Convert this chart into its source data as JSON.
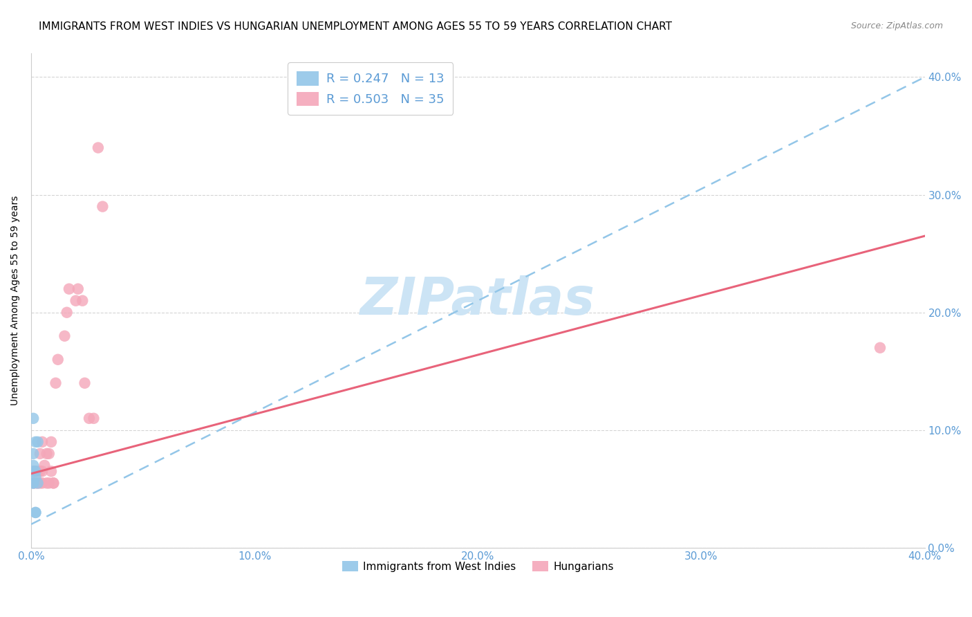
{
  "title": "IMMIGRANTS FROM WEST INDIES VS HUNGARIAN UNEMPLOYMENT AMONG AGES 55 TO 59 YEARS CORRELATION CHART",
  "source": "Source: ZipAtlas.com",
  "ylabel": "Unemployment Among Ages 55 to 59 years",
  "legend_label1": "Immigrants from West Indies",
  "legend_label2": "Hungarians",
  "legend_R1": "R = 0.247",
  "legend_N1": "N = 13",
  "legend_R2": "R = 0.503",
  "legend_N2": "N = 35",
  "watermark": "ZIPatlas",
  "blue_points_x": [
    0.001,
    0.002,
    0.001,
    0.003,
    0.002,
    0.001,
    0.001,
    0.002,
    0.001,
    0.003,
    0.001,
    0.002,
    0.002
  ],
  "blue_points_y": [
    0.11,
    0.09,
    0.08,
    0.09,
    0.065,
    0.07,
    0.065,
    0.06,
    0.055,
    0.055,
    0.055,
    0.03,
    0.03
  ],
  "pink_points_x": [
    0.001,
    0.001,
    0.002,
    0.002,
    0.003,
    0.003,
    0.004,
    0.004,
    0.004,
    0.005,
    0.005,
    0.005,
    0.006,
    0.007,
    0.007,
    0.008,
    0.008,
    0.009,
    0.009,
    0.01,
    0.01,
    0.011,
    0.012,
    0.015,
    0.016,
    0.017,
    0.02,
    0.021,
    0.023,
    0.024,
    0.026,
    0.028,
    0.03,
    0.032,
    0.38
  ],
  "pink_points_y": [
    0.065,
    0.055,
    0.065,
    0.055,
    0.065,
    0.055,
    0.065,
    0.055,
    0.08,
    0.09,
    0.065,
    0.055,
    0.07,
    0.055,
    0.08,
    0.055,
    0.08,
    0.065,
    0.09,
    0.055,
    0.055,
    0.14,
    0.16,
    0.18,
    0.2,
    0.22,
    0.21,
    0.22,
    0.21,
    0.14,
    0.11,
    0.11,
    0.34,
    0.29,
    0.17
  ],
  "blue_line_x": [
    0.0,
    0.4
  ],
  "blue_line_y_start": 0.02,
  "blue_line_slope": 0.95,
  "pink_line_x": [
    0.0,
    0.4
  ],
  "pink_line_y_start": 0.063,
  "pink_line_y_end": 0.265,
  "xlim": [
    0.0,
    0.4
  ],
  "ylim": [
    0.0,
    0.42
  ],
  "blue_color": "#93c6e8",
  "pink_color": "#f4a7b9",
  "blue_line_color": "#93c6e8",
  "pink_line_color": "#e8637a",
  "grid_color": "#d0d0d0",
  "watermark_color": "#cce4f5",
  "axis_tick_color": "#5b9bd5",
  "title_fontsize": 11,
  "axis_label_fontsize": 10,
  "tick_fontsize": 11,
  "legend_fontsize": 13
}
